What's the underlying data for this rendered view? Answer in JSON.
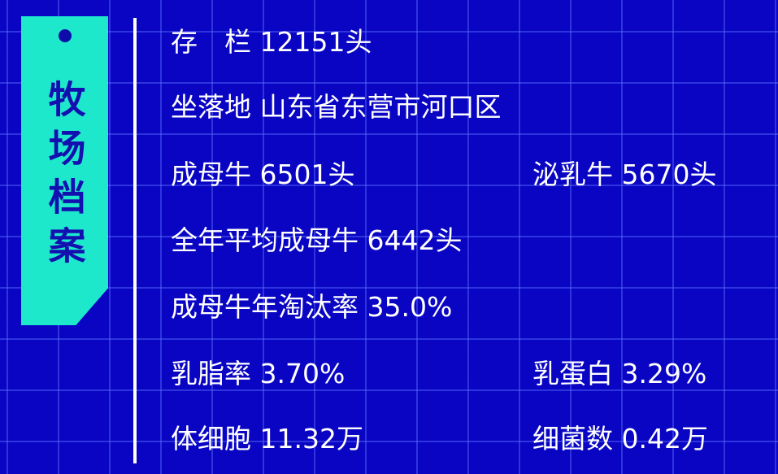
{
  "tag": {
    "title": "牧场档案"
  },
  "colors": {
    "background": "#0905c2",
    "tag": "#1ee8cc",
    "tag_text": "#1410b0"
  },
  "fields": {
    "stock": "存　栏 12151头",
    "location": "坐落地 山东省东营市河口区",
    "adult_cows": "成母牛 6501头",
    "lactating_cows": "泌乳牛 5670头",
    "avg_adult_cows": "全年平均成母牛 6442头",
    "cull_rate": "成母牛年淘汰率 35.0%",
    "fat_rate": "乳脂率 3.70%",
    "protein": "乳蛋白 3.29%",
    "somatic_cells": "体细胞 11.32万",
    "bacteria": "细菌数 0.42万"
  }
}
